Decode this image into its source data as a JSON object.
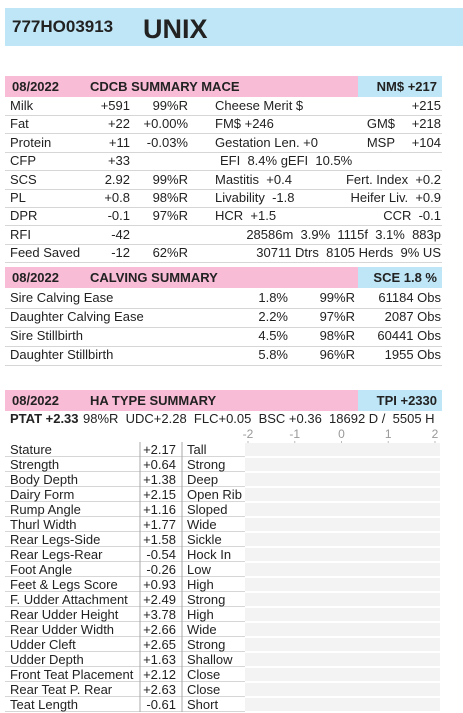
{
  "header": {
    "id": "777HO03913",
    "name": "UNIX"
  },
  "mace": {
    "date": "08/2022",
    "title": "CDCB SUMMARY MACE",
    "badge": "NM$ +217",
    "rows": [
      [
        "Milk",
        "+591",
        "99%R",
        "Cheese Merit $",
        "+215"
      ],
      [
        "Fat",
        "+22",
        "+0.00%",
        "FM$ +246",
        "GM$",
        "+218"
      ],
      [
        "Protein",
        "+11",
        "-0.03%",
        "Gestation Len. +0",
        "MSP",
        "+104"
      ],
      [
        "CFP",
        "+33",
        "EFI  8.4% gEFI  10.5%"
      ],
      [
        "SCS",
        "2.92",
        "99%R",
        "Mastitis  +0.4",
        "Fert. Index  +0.2"
      ],
      [
        "PL",
        "+0.8",
        "98%R",
        "Livability  -1.8",
        "Heifer Liv.  +0.9"
      ],
      [
        "DPR",
        "-0.1",
        "97%R",
        "HCR  +1.5",
        "CCR  -0.1"
      ],
      [
        "RFI",
        "-42",
        "28586m  3.9%  1115f  3.1%  883p"
      ],
      [
        "Feed Saved",
        "-12",
        "62%R",
        "30711 Dtrs  8105 Herds  9% US"
      ]
    ]
  },
  "calving": {
    "date": "08/2022",
    "title": "CALVING SUMMARY",
    "badge": "SCE 1.8 %",
    "rows": [
      [
        "Sire Calving Ease",
        "1.8%",
        "99%R",
        "61184 Obs"
      ],
      [
        "Daughter Calving Ease",
        "2.2%",
        "97%R",
        "2087 Obs"
      ],
      [
        "Sire Stillbirth",
        "4.5%",
        "98%R",
        "60441 Obs"
      ],
      [
        "Daughter Stillbirth",
        "5.8%",
        "96%R",
        "1955 Obs"
      ]
    ]
  },
  "type_summary": {
    "date": "08/2022",
    "title": "HA TYPE SUMMARY",
    "badge": "TPI +2330",
    "ptat": "PTAT +2.33",
    "info": "98%R  UDC+2.28  FLC+0.05  BSC +0.36  18692 D /  5505 H",
    "xlim": [
      -2,
      2
    ],
    "xticks": [
      -2,
      -1,
      0,
      1,
      2
    ],
    "color": "#f7c6dc",
    "traits": [
      "Stature",
      "Strength",
      "Body Depth",
      "Dairy Form",
      "Rump Angle",
      "Thurl Width",
      "Rear Legs-Side",
      "Rear Legs-Rear",
      "Foot Angle",
      "Feet & Legs Score",
      "F. Udder Attachment",
      "Rear Udder Height",
      "Rear Udder Width",
      "Udder Cleft",
      "Udder Depth",
      "Front Teat Placement",
      "Rear Teat P. Rear",
      "Teat Length"
    ],
    "values": [
      2.17,
      0.64,
      1.38,
      2.15,
      1.16,
      1.77,
      1.58,
      -0.54,
      -0.26,
      0.93,
      2.49,
      3.78,
      2.66,
      2.65,
      1.63,
      2.12,
      2.63,
      -0.61
    ],
    "value_labels": [
      "+2.17",
      "+0.64",
      "+1.38",
      "+2.15",
      "+1.16",
      "+1.77",
      "+1.58",
      "-0.54",
      "-0.26",
      "+0.93",
      "+2.49",
      "+3.78",
      "+2.66",
      "+2.65",
      "+1.63",
      "+2.12",
      "+2.63",
      "-0.61"
    ],
    "descriptors": [
      "Tall",
      "Strong",
      "Deep",
      "Open Rib",
      "Sloped",
      "Wide",
      "Sickle",
      "Hock In",
      "Low",
      "High",
      "Strong",
      "High",
      "Wide",
      "Strong",
      "Shallow",
      "Close",
      "Close",
      "Short"
    ]
  }
}
